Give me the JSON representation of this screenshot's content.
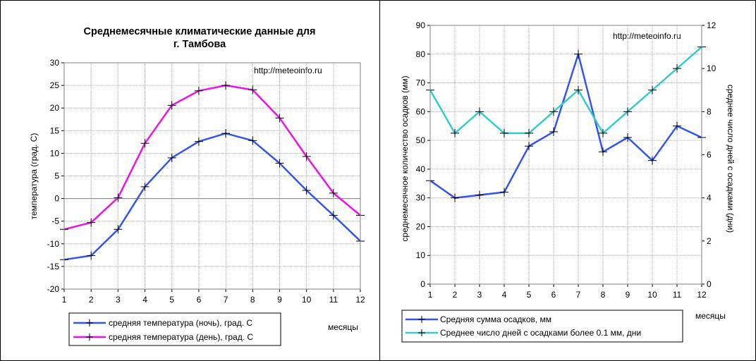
{
  "chart_data": [
    {
      "type": "line",
      "title": "Среднемесячные климатические данные для",
      "title_line2": "г. Тамбова",
      "watermark": "http://meteoinfo.ru",
      "ylabel": "температура (град. C)",
      "xlabel": "месяцы",
      "ylim": [
        -20,
        30
      ],
      "yticks": [
        "-20",
        "-15",
        "-10",
        "-5",
        "0",
        "5",
        "10",
        "15",
        "20",
        "25",
        "30"
      ],
      "categories": [
        "1",
        "2",
        "3",
        "4",
        "5",
        "6",
        "7",
        "8",
        "9",
        "10",
        "11",
        "12"
      ],
      "grid": true,
      "legend_position": "bottom",
      "series": [
        {
          "name": "средняя температура (ночь), град. С",
          "color": "#3355ee",
          "values": [
            -13.5,
            -12.6,
            -6.8,
            2.6,
            9.0,
            12.6,
            14.4,
            12.8,
            7.8,
            1.8,
            -3.7,
            -9.4
          ]
        },
        {
          "name": "средняя температура (день), град. С",
          "color": "#ee11ee",
          "values": [
            -6.8,
            -5.3,
            0.2,
            12.2,
            20.6,
            23.8,
            25.0,
            24.0,
            17.8,
            9.3,
            1.2,
            -3.7
          ]
        }
      ]
    },
    {
      "type": "line",
      "watermark": "http://meteoinfo.ru",
      "ylabel": "среднемесячное количество осадков (мм)",
      "y2label": "среднее число дней с осадками (дни)",
      "xlabel": "месяцы",
      "ylim": [
        0,
        90
      ],
      "y2lim": [
        0,
        12
      ],
      "yticks": [
        "0",
        "10",
        "20",
        "30",
        "40",
        "50",
        "60",
        "70",
        "80",
        "90"
      ],
      "y2ticks": [
        "0",
        "2",
        "4",
        "6",
        "8",
        "10",
        "12"
      ],
      "categories": [
        "1",
        "2",
        "3",
        "4",
        "5",
        "6",
        "7",
        "8",
        "9",
        "10",
        "11",
        "12"
      ],
      "grid": true,
      "legend_position": "bottom",
      "series": [
        {
          "name": "Средняя сумма осадков, мм",
          "color": "#3355ee",
          "axis": "left",
          "values": [
            36,
            30,
            31,
            32,
            48,
            53,
            80,
            46,
            51,
            43,
            55,
            51
          ]
        },
        {
          "name": "Среднее число дней с  осадками более 0.1 мм, дни",
          "color": "#33cccc",
          "axis": "right",
          "values": [
            9,
            7,
            8,
            7,
            7,
            8,
            9,
            7,
            8,
            9,
            10,
            11
          ]
        }
      ]
    }
  ]
}
